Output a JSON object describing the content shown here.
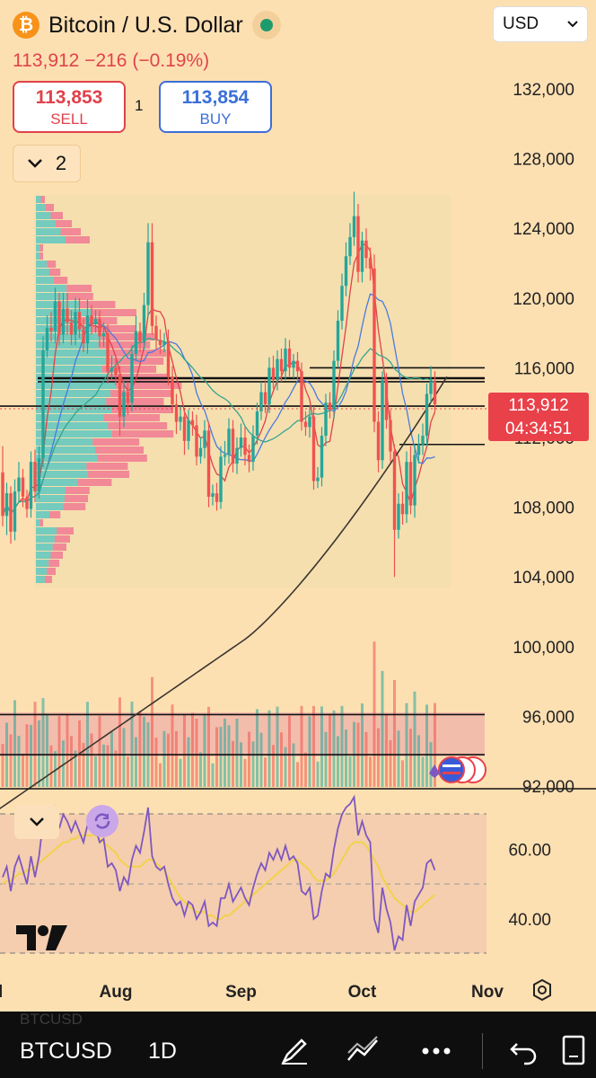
{
  "header": {
    "logo_symbol": "₿",
    "title": "Bitcoin / U.S. Dollar",
    "last_price_line": "113,912 −216 (−0.19%)",
    "currency": "USD",
    "sell": {
      "price": "113,853",
      "label": "SELL"
    },
    "buy": {
      "price": "113,854",
      "label": "BUY"
    },
    "spread": "1",
    "layers_count": "2"
  },
  "price_tag": {
    "price": "113,912",
    "countdown": "04:34:51"
  },
  "toolbar": {
    "symbol": "BTCUSD",
    "symbol_ghost": "BTCUSD",
    "timeframe": "1D",
    "icons": [
      "pen-icon",
      "line-tool-icon",
      "more-icon",
      "undo-icon",
      "page-icon"
    ]
  },
  "colors": {
    "background": "#fde0b2",
    "up": "#26a69a",
    "down": "#ef5350",
    "price_tag": "#e8414a",
    "rsi": "#7e57c2",
    "rsi_ma": "#f2d24a"
  },
  "chart_data": {
    "type": "candlestick",
    "y_axis_ticks": [
      "132,000",
      "128,000",
      "124,000",
      "120,000",
      "116,000",
      "112,000",
      "108,000",
      "104,000",
      "100,000",
      "96,000",
      "92,000"
    ],
    "y_tick_values": [
      132000,
      128000,
      124000,
      120000,
      116000,
      112000,
      108000,
      104000,
      100000,
      96000,
      92000
    ],
    "x_axis_ticks": [
      "Jul",
      "Aug",
      "Sep",
      "Oct",
      "Nov"
    ],
    "x_tick_values": [
      -3,
      28,
      59,
      89,
      120
    ],
    "horizontal_levels": [
      116000,
      115400,
      115200,
      113800,
      111600,
      96100,
      93800
    ],
    "candles": [
      [
        110000,
        107500,
        111500,
        106900
      ],
      [
        107500,
        108800,
        109400,
        106400
      ],
      [
        108800,
        106600,
        109200,
        105900
      ],
      [
        106600,
        108900,
        109600,
        106100
      ],
      [
        108900,
        109700,
        110600,
        108300
      ],
      [
        109700,
        108600,
        110200,
        108000
      ],
      [
        108600,
        107900,
        109000,
        107400
      ],
      [
        107900,
        110600,
        111200,
        107400
      ],
      [
        110600,
        108900,
        111300,
        108300
      ],
      [
        108900,
        110800,
        111500,
        108500
      ],
      [
        110800,
        117000,
        117800,
        110300
      ],
      [
        117000,
        118300,
        119000,
        116600
      ],
      [
        118300,
        118100,
        119200,
        117500
      ],
      [
        118100,
        119800,
        120600,
        117400
      ],
      [
        119800,
        117900,
        120300,
        117300
      ],
      [
        117900,
        119400,
        120300,
        117400
      ],
      [
        119400,
        118600,
        120300,
        117900
      ],
      [
        118600,
        117900,
        119300,
        117300
      ],
      [
        117900,
        119200,
        120000,
        117300
      ],
      [
        119200,
        118200,
        120000,
        117700
      ],
      [
        118200,
        117400,
        118800,
        116900
      ],
      [
        117400,
        119000,
        119900,
        116800
      ],
      [
        119000,
        118500,
        119600,
        117900
      ],
      [
        118500,
        118800,
        119300,
        118000
      ],
      [
        118800,
        117800,
        119300,
        117200
      ],
      [
        117800,
        118000,
        118600,
        117200
      ],
      [
        118000,
        115800,
        118500,
        115100
      ],
      [
        115800,
        116000,
        116700,
        115300
      ],
      [
        116000,
        115600,
        116700,
        115000
      ],
      [
        115600,
        113200,
        116100,
        112100
      ],
      [
        113200,
        114600,
        115300,
        112600
      ],
      [
        114600,
        114000,
        115200,
        113300
      ],
      [
        114000,
        116800,
        117300,
        113500
      ],
      [
        116800,
        118100,
        119000,
        116400
      ],
      [
        118100,
        117500,
        118600,
        116900
      ],
      [
        117500,
        119600,
        120300,
        117000
      ],
      [
        119600,
        123200,
        124300,
        118900
      ],
      [
        123200,
        118400,
        124300,
        117900
      ],
      [
        118400,
        117600,
        119000,
        117000
      ],
      [
        117600,
        117300,
        118200,
        116800
      ],
      [
        117300,
        117500,
        118000,
        116900
      ],
      [
        117500,
        115500,
        118200,
        115000
      ],
      [
        115500,
        113900,
        116100,
        113400
      ],
      [
        113900,
        112900,
        114500,
        112200
      ],
      [
        112900,
        113200,
        113800,
        112400
      ],
      [
        113200,
        111800,
        113700,
        111000
      ],
      [
        111800,
        113000,
        113600,
        111300
      ],
      [
        113000,
        112700,
        113500,
        112100
      ],
      [
        112700,
        110900,
        113300,
        110400
      ],
      [
        110900,
        111400,
        112000,
        110500
      ],
      [
        111400,
        112400,
        113000,
        110800
      ],
      [
        112400,
        108600,
        112900,
        108000
      ],
      [
        108600,
        108800,
        109300,
        108100
      ],
      [
        108800,
        108300,
        109400,
        107800
      ],
      [
        108300,
        110900,
        111500,
        107900
      ],
      [
        110900,
        111000,
        111800,
        110400
      ],
      [
        111000,
        112500,
        113100,
        110500
      ],
      [
        112500,
        110500,
        113000,
        110000
      ],
      [
        110500,
        111400,
        112000,
        109900
      ],
      [
        111400,
        112000,
        112800,
        110900
      ],
      [
        112000,
        111000,
        112600,
        110400
      ],
      [
        111000,
        110600,
        111600,
        110000
      ],
      [
        110600,
        112100,
        112700,
        110100
      ],
      [
        112100,
        113500,
        114000,
        111600
      ],
      [
        113500,
        114600,
        115200,
        113000
      ],
      [
        114600,
        113900,
        115300,
        113400
      ],
      [
        113900,
        116000,
        116600,
        113400
      ],
      [
        116000,
        115300,
        116700,
        114800
      ],
      [
        115300,
        116500,
        117000,
        114700
      ],
      [
        116500,
        115800,
        117100,
        115200
      ],
      [
        115800,
        117100,
        117700,
        115300
      ],
      [
        117100,
        116000,
        117600,
        115500
      ],
      [
        116000,
        116400,
        116800,
        115400
      ],
      [
        116400,
        115800,
        116900,
        115300
      ],
      [
        115800,
        112900,
        116300,
        112400
      ],
      [
        112900,
        112600,
        113500,
        112100
      ],
      [
        112600,
        113200,
        113800,
        112000
      ],
      [
        113200,
        109500,
        113800,
        109000
      ],
      [
        109500,
        109700,
        110300,
        109100
      ],
      [
        109700,
        112100,
        112600,
        109200
      ],
      [
        112100,
        114000,
        114500,
        111500
      ],
      [
        114000,
        113600,
        114600,
        113100
      ],
      [
        113600,
        116400,
        117000,
        113100
      ],
      [
        116400,
        118700,
        119300,
        116000
      ],
      [
        118700,
        120700,
        121400,
        118200
      ],
      [
        120700,
        122400,
        123200,
        120100
      ],
      [
        122400,
        123500,
        124300,
        121900
      ],
      [
        123500,
        124700,
        126100,
        123000
      ],
      [
        124700,
        121500,
        125400,
        120900
      ],
      [
        121500,
        123300,
        123800,
        120900
      ],
      [
        123300,
        122300,
        124000,
        121700
      ],
      [
        122300,
        121700,
        122900,
        121000
      ],
      [
        121700,
        112900,
        122500,
        112300
      ],
      [
        112900,
        110700,
        113500,
        110000
      ],
      [
        110700,
        115300,
        115800,
        110200
      ],
      [
        115300,
        113000,
        115700,
        112500
      ],
      [
        113000,
        111200,
        113600,
        110600
      ],
      [
        111200,
        106700,
        111600,
        104000
      ],
      [
        106700,
        108200,
        108800,
        106200
      ],
      [
        108200,
        107600,
        108900,
        107000
      ],
      [
        107600,
        110600,
        111200,
        107100
      ],
      [
        110600,
        108100,
        111500,
        107600
      ],
      [
        108100,
        111000,
        111600,
        107400
      ],
      [
        111000,
        111600,
        112200,
        110500
      ],
      [
        111600,
        112100,
        112800,
        111000
      ],
      [
        112100,
        114500,
        115100,
        111500
      ],
      [
        114500,
        115200,
        116100,
        114000
      ],
      [
        115200,
        113900,
        115800,
        113400
      ]
    ],
    "rsi": {
      "ticks": [
        "60.00",
        "40.00"
      ],
      "tick_values": [
        60,
        40
      ],
      "values": [
        52,
        55,
        48,
        55,
        58,
        54,
        50,
        58,
        52,
        58,
        68,
        70,
        69,
        72,
        66,
        70,
        68,
        65,
        68,
        65,
        62,
        67,
        65,
        66,
        62,
        63,
        55,
        56,
        54,
        48,
        52,
        50,
        57,
        61,
        59,
        65,
        72,
        58,
        55,
        54,
        55,
        50,
        46,
        44,
        45,
        41,
        45,
        44,
        40,
        42,
        45,
        38,
        39,
        38,
        46,
        46,
        50,
        45,
        47,
        49,
        46,
        44,
        49,
        53,
        56,
        54,
        59,
        57,
        60,
        57,
        61,
        57,
        58,
        56,
        48,
        47,
        49,
        40,
        41,
        48,
        53,
        52,
        60,
        66,
        70,
        72,
        73,
        75,
        64,
        68,
        64,
        62,
        40,
        36,
        49,
        43,
        39,
        31,
        35,
        34,
        44,
        38,
        45,
        47,
        49,
        56,
        57,
        54
      ],
      "ma": [
        50,
        51,
        51,
        52,
        53,
        53,
        54,
        54,
        55,
        56,
        57,
        58,
        59,
        60,
        61,
        62,
        62,
        63,
        63,
        64,
        64,
        64,
        64,
        64,
        63,
        62,
        61,
        60,
        59,
        57,
        56,
        55,
        55,
        55,
        55,
        56,
        57,
        57,
        56,
        55,
        54,
        52,
        50,
        48,
        46,
        45,
        44,
        43,
        42,
        42,
        42,
        41,
        41,
        40,
        40,
        41,
        41,
        42,
        43,
        44,
        45,
        46,
        47,
        48,
        49,
        50,
        51,
        52,
        53,
        54,
        55,
        56,
        57,
        57,
        56,
        55,
        54,
        52,
        51,
        51,
        51,
        52,
        53,
        55,
        57,
        59,
        61,
        62,
        62,
        62,
        61,
        59,
        57,
        55,
        52,
        50,
        48,
        46,
        45,
        44,
        43,
        42,
        42,
        43,
        44,
        45,
        46,
        47
      ]
    }
  }
}
